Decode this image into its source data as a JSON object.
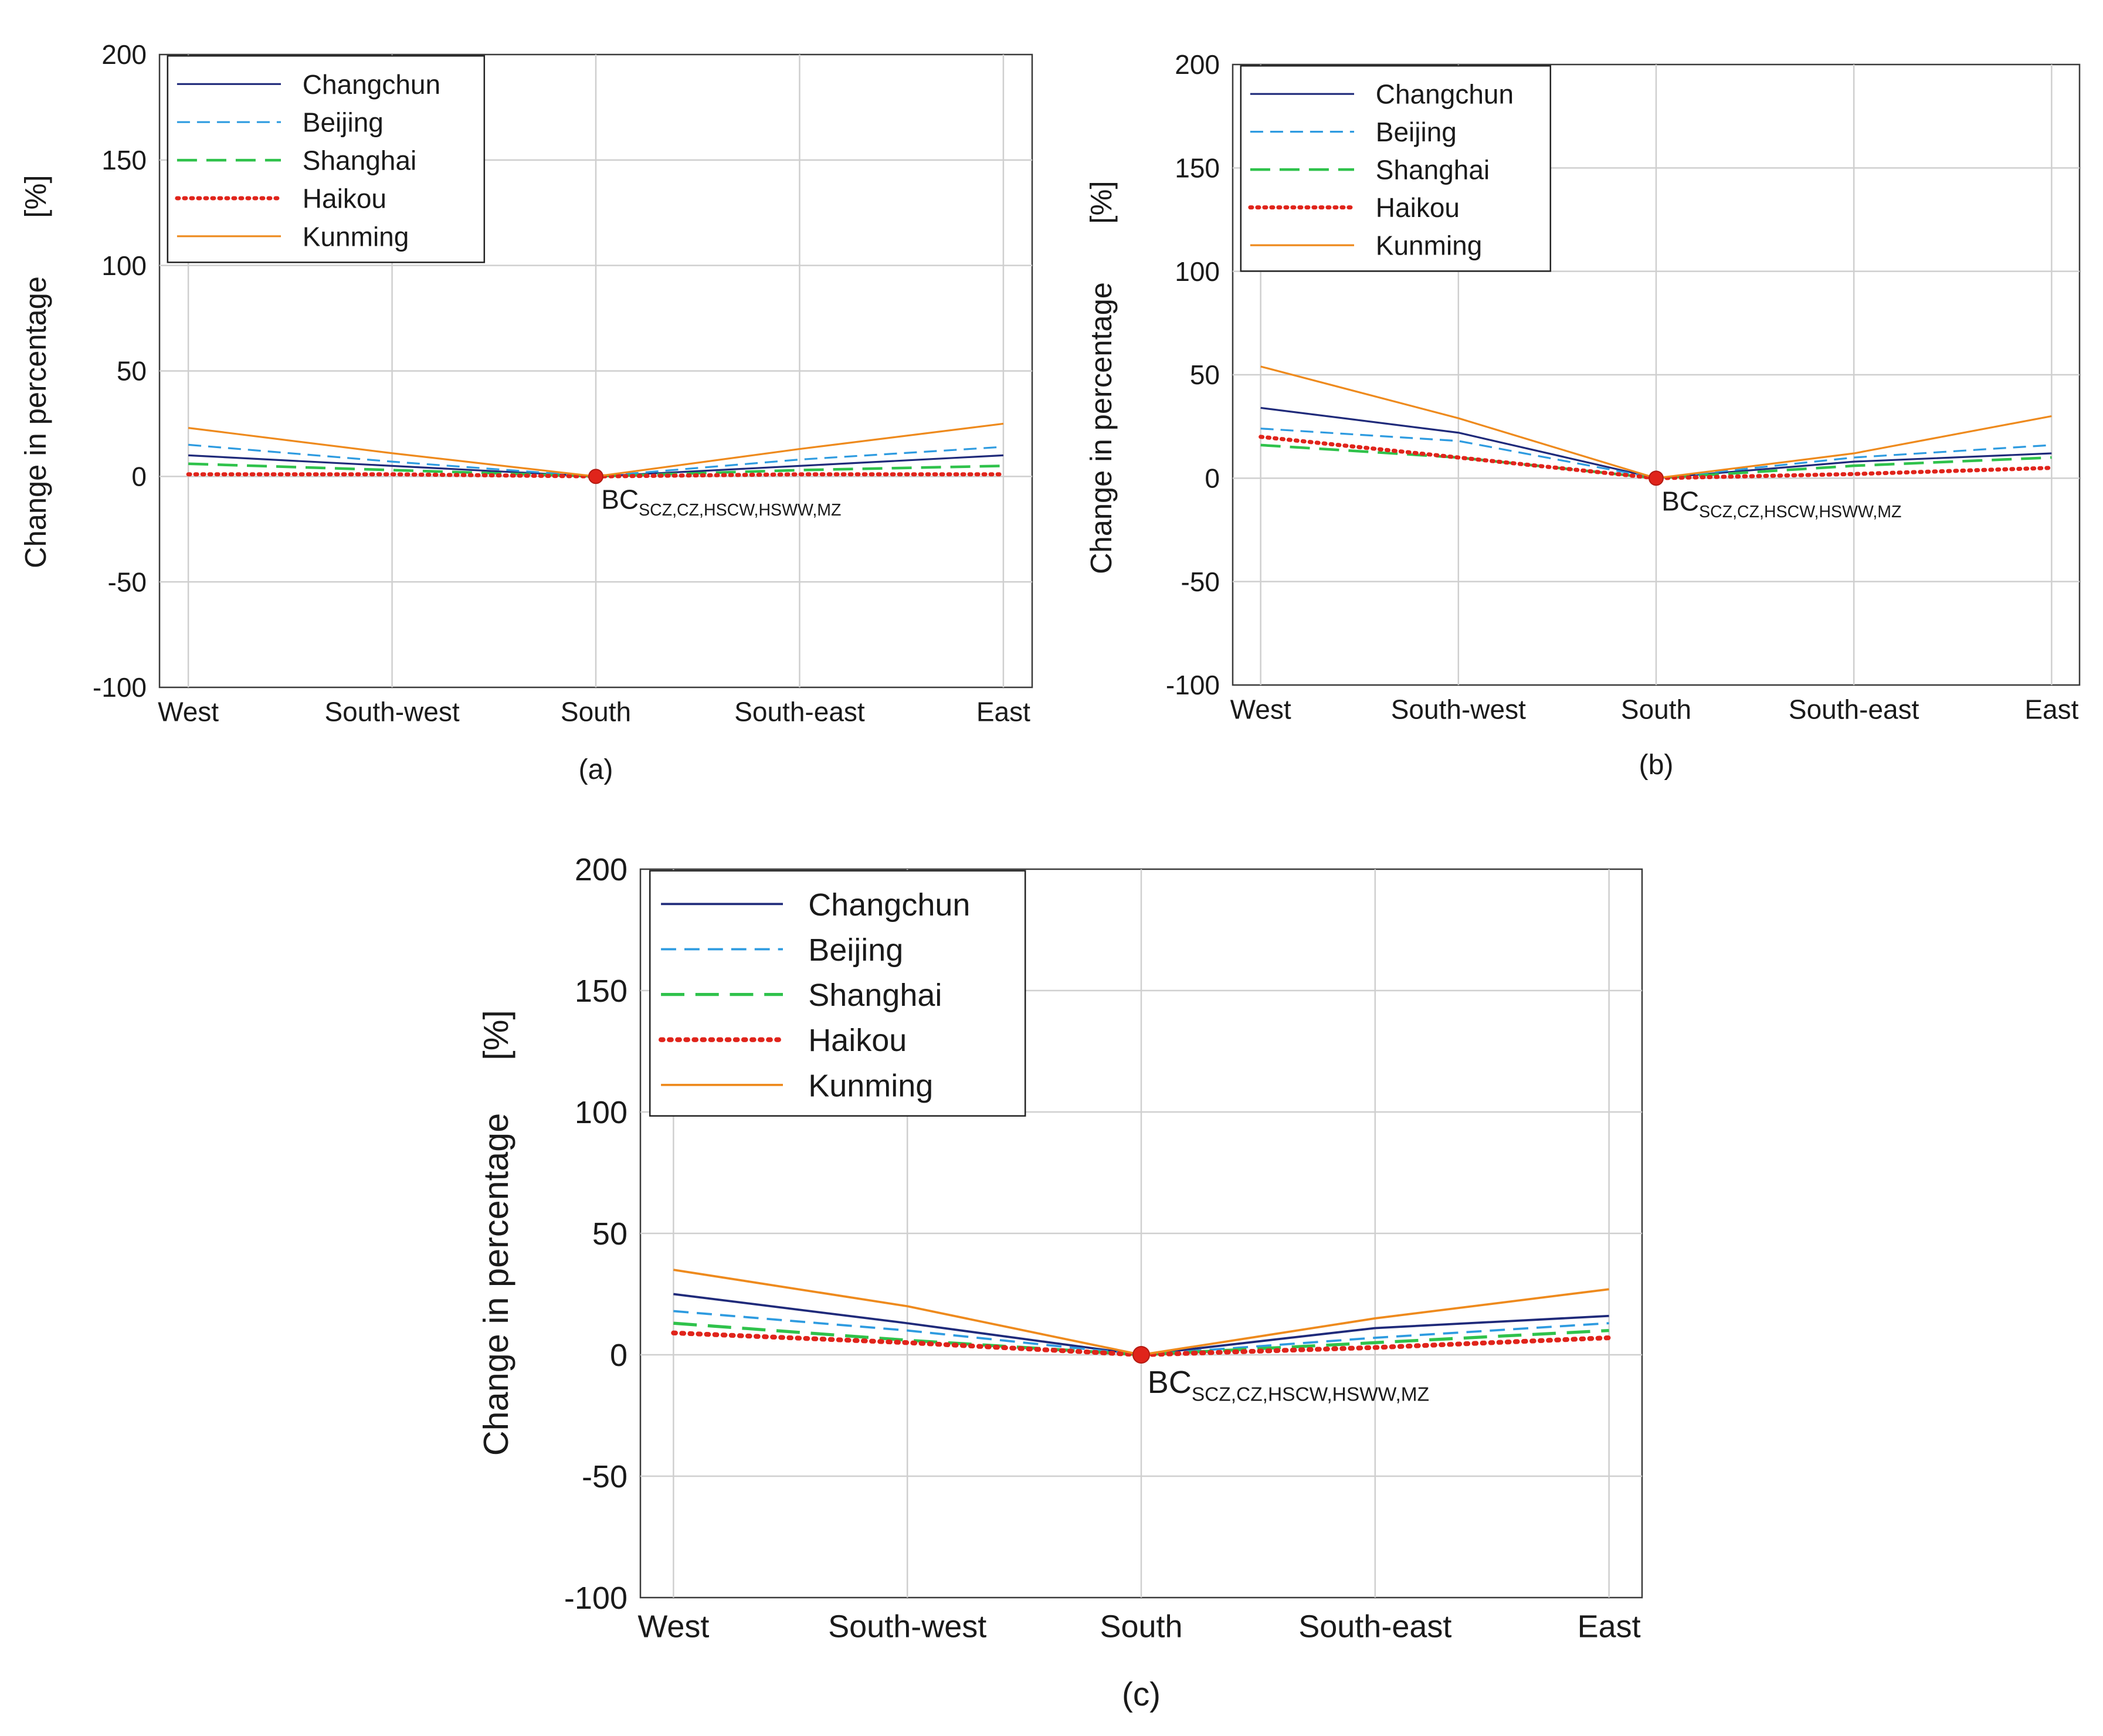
{
  "figure": {
    "shared": {
      "ylabel": "Change in percentage",
      "yunit": "[%]",
      "categories": [
        "West",
        "South-west",
        "South",
        "South-east",
        "East"
      ],
      "ylim": [
        -100,
        200
      ],
      "yticks": [
        200,
        150,
        100,
        50,
        0,
        -50,
        -100
      ],
      "annotation_base": "BC",
      "annotation_sub": "SCZ,CZ,HSCW,HSWW,MZ",
      "legend_position": "top-left"
    },
    "panels": [
      {
        "label": "(a)"
      },
      {
        "label": "(b)"
      },
      {
        "label": "(c)"
      }
    ]
  },
  "series_styles": [
    {
      "name": "Changchun",
      "color": "#1f2a7a",
      "dash": "solid"
    },
    {
      "name": "Beijing",
      "color": "#2e9be0",
      "dash": "dashed"
    },
    {
      "name": "Shanghai",
      "color": "#2fc24b",
      "dash": "longdash"
    },
    {
      "name": "Haikou",
      "color": "#e0241b",
      "dash": "dotted"
    },
    {
      "name": "Kunming",
      "color": "#ee8a1d",
      "dash": "solid"
    }
  ],
  "chart_data": [
    {
      "type": "line",
      "title": "(a)",
      "xlabel": "",
      "ylabel": "Change in percentage [%]",
      "categories": [
        "West",
        "South-west",
        "South",
        "South-east",
        "East"
      ],
      "ylim": [
        -100,
        200
      ],
      "grid": true,
      "series": [
        {
          "name": "Changchun",
          "values": [
            10,
            5,
            0,
            5,
            10
          ]
        },
        {
          "name": "Beijing",
          "values": [
            15,
            7,
            0,
            8,
            14
          ]
        },
        {
          "name": "Shanghai",
          "values": [
            6,
            3,
            0,
            3,
            5
          ]
        },
        {
          "name": "Haikou",
          "values": [
            1,
            1,
            0,
            1,
            1
          ]
        },
        {
          "name": "Kunming",
          "values": [
            23,
            11,
            0,
            13,
            25
          ]
        }
      ],
      "annotations": [
        {
          "x": "South",
          "y": 0,
          "text": "BC SCZ,CZ,HSCW,HSWW,MZ"
        }
      ]
    },
    {
      "type": "line",
      "title": "(b)",
      "xlabel": "",
      "ylabel": "Change in percentage [%]",
      "categories": [
        "West",
        "South-west",
        "South",
        "South-east",
        "East"
      ],
      "ylim": [
        -100,
        200
      ],
      "grid": true,
      "series": [
        {
          "name": "Changchun",
          "values": [
            34,
            22,
            0,
            8,
            12
          ]
        },
        {
          "name": "Beijing",
          "values": [
            24,
            18,
            0,
            10,
            16
          ]
        },
        {
          "name": "Shanghai",
          "values": [
            16,
            10,
            0,
            6,
            10
          ]
        },
        {
          "name": "Haikou",
          "values": [
            20,
            10,
            0,
            2,
            5
          ]
        },
        {
          "name": "Kunming",
          "values": [
            54,
            29,
            0,
            12,
            30
          ]
        }
      ],
      "annotations": [
        {
          "x": "South",
          "y": 0,
          "text": "BC SCZ,CZ,HSCW,HSWW,MZ"
        }
      ]
    },
    {
      "type": "line",
      "title": "(c)",
      "xlabel": "",
      "ylabel": "Change in percentage [%]",
      "categories": [
        "West",
        "South-west",
        "South",
        "South-east",
        "East"
      ],
      "ylim": [
        -100,
        200
      ],
      "grid": true,
      "series": [
        {
          "name": "Changchun",
          "values": [
            25,
            13,
            0,
            11,
            16
          ]
        },
        {
          "name": "Beijing",
          "values": [
            18,
            10,
            0,
            7,
            13
          ]
        },
        {
          "name": "Shanghai",
          "values": [
            13,
            6,
            0,
            5,
            10
          ]
        },
        {
          "name": "Haikou",
          "values": [
            9,
            5,
            0,
            3,
            7
          ]
        },
        {
          "name": "Kunming",
          "values": [
            35,
            20,
            0,
            15,
            27
          ]
        }
      ],
      "annotations": [
        {
          "x": "South",
          "y": 0,
          "text": "BC SCZ,CZ,HSCW,HSWW,MZ"
        }
      ]
    }
  ]
}
